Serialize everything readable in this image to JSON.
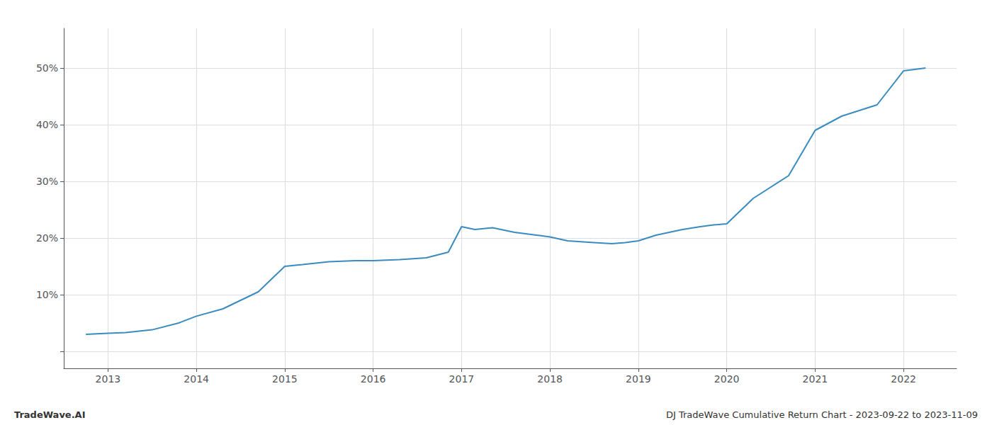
{
  "chart_data": {
    "type": "line",
    "x": [
      2012.75,
      2013.0,
      2013.2,
      2013.5,
      2013.8,
      2014.0,
      2014.3,
      2014.7,
      2015.0,
      2015.2,
      2015.5,
      2015.8,
      2016.0,
      2016.3,
      2016.6,
      2016.85,
      2017.0,
      2017.15,
      2017.35,
      2017.6,
      2017.85,
      2018.0,
      2018.2,
      2018.5,
      2018.7,
      2018.85,
      2019.0,
      2019.2,
      2019.5,
      2019.7,
      2019.85,
      2020.0,
      2020.3,
      2020.7,
      2021.0,
      2021.3,
      2021.7,
      2022.0,
      2022.25
    ],
    "values": [
      3.0,
      3.2,
      3.3,
      3.8,
      5.0,
      6.2,
      7.5,
      10.5,
      15.0,
      15.3,
      15.8,
      16.0,
      16.0,
      16.2,
      16.5,
      17.5,
      22.0,
      21.5,
      21.8,
      21.0,
      20.5,
      20.2,
      19.5,
      19.2,
      19.0,
      19.2,
      19.5,
      20.5,
      21.5,
      22.0,
      22.3,
      22.5,
      27.0,
      31.0,
      39.0,
      41.5,
      43.5,
      49.5,
      50.0
    ],
    "color": "#3a8bbf",
    "xlim": [
      2012.5,
      2022.6
    ],
    "xticks": [
      2013,
      2014,
      2015,
      2016,
      2017,
      2018,
      2019,
      2020,
      2021,
      2022
    ],
    "ylim": [
      -3,
      57
    ],
    "yticks": [
      {
        "value": 0,
        "label": ""
      },
      {
        "value": 10,
        "label": "10%"
      },
      {
        "value": 20,
        "label": "20%"
      },
      {
        "value": 30,
        "label": "30%"
      },
      {
        "value": 40,
        "label": "40%"
      },
      {
        "value": 50,
        "label": "50%"
      }
    ],
    "grid": true,
    "annotations": [
      "TradeWave.AI",
      "DJ TradeWave Cumulative Return Chart - 2023-09-22 to 2023-11-09"
    ]
  }
}
